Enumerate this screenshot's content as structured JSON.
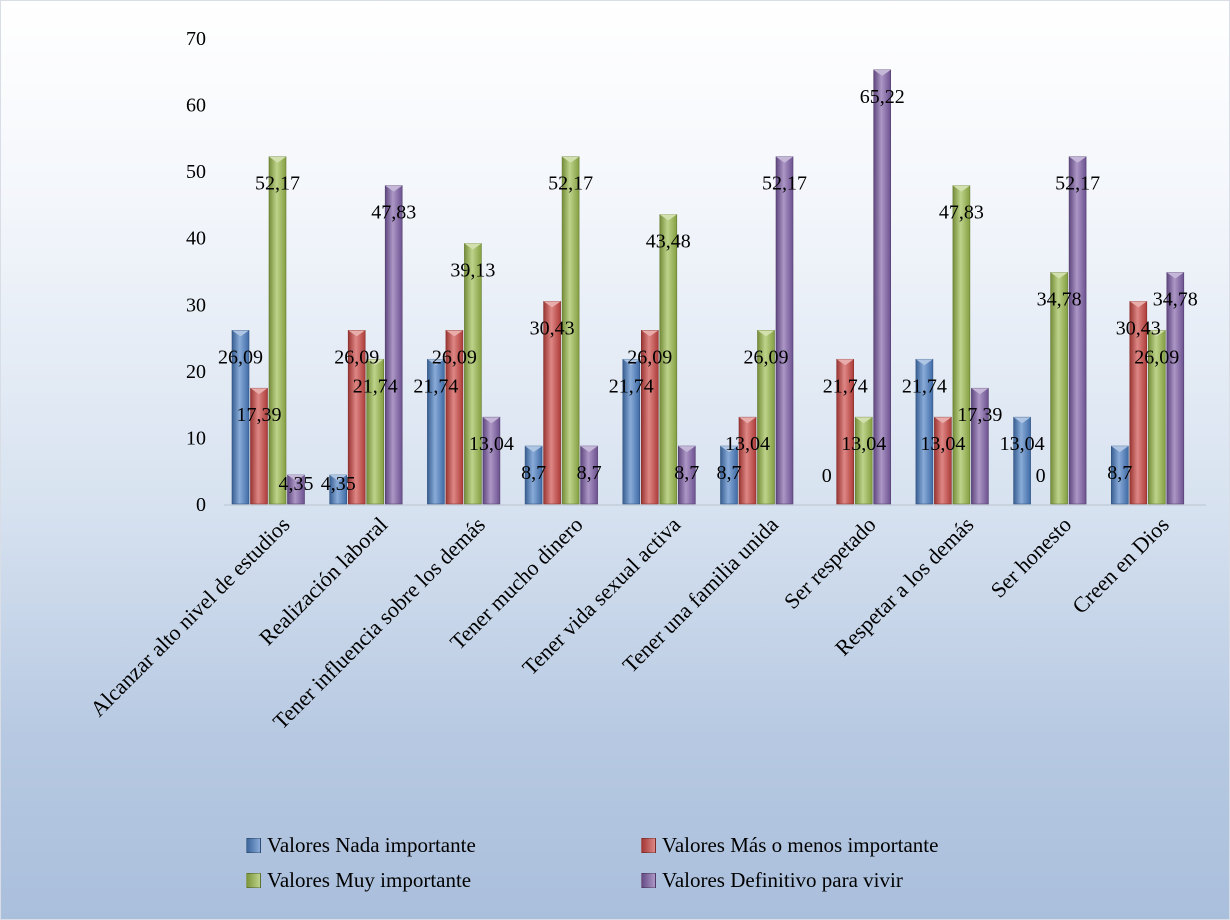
{
  "chart_data": {
    "type": "bar",
    "title": "",
    "xlabel": "",
    "ylabel": "",
    "ylim": [
      0,
      70
    ],
    "yticks": [
      0,
      10,
      20,
      30,
      40,
      50,
      60,
      70
    ],
    "grid": false,
    "legend_position": "bottom",
    "categories": [
      "Alcanzar alto nivel de estudios",
      "Realización laboral",
      "Tener influencia sobre los demás",
      "Tener mucho dinero",
      "Tener vida sexual activa",
      "Tener una familia unida",
      "Ser respetado",
      "Respetar a los demás",
      "Ser honesto",
      "Creen en Dios"
    ],
    "series": [
      {
        "name": "Valores Nada importante",
        "color": "#4a7ec3",
        "values": [
          26.09,
          4.35,
          21.74,
          8.7,
          21.74,
          8.7,
          0,
          21.74,
          13.04,
          8.7
        ],
        "labels": [
          "26,09",
          "4,35",
          "21,74",
          "8,7",
          "21,74",
          "8,7",
          "0",
          "21,74",
          "13,04",
          "8,7"
        ]
      },
      {
        "name": "Valores Más o menos importante",
        "color": "#cc4643",
        "values": [
          17.39,
          26.09,
          26.09,
          30.43,
          26.09,
          13.04,
          21.74,
          13.04,
          0,
          30.43
        ],
        "labels": [
          "17,39",
          "26,09",
          "26,09",
          "30,43",
          "26,09",
          "13,04",
          "21,74",
          "13,04",
          "0",
          "30,43"
        ]
      },
      {
        "name": "Valores Muy importante",
        "color": "#9bbb4c",
        "values": [
          52.17,
          21.74,
          39.13,
          52.17,
          43.48,
          26.09,
          13.04,
          47.83,
          34.78,
          26.09
        ],
        "labels": [
          "52,17",
          "21,74",
          "39,13",
          "52,17",
          "43,48",
          "26,09",
          "13,04",
          "47,83",
          "34,78",
          "26,09"
        ]
      },
      {
        "name": "Valores Definitivo para vivir",
        "color": "#7f5fa8",
        "values": [
          4.35,
          47.83,
          13.04,
          8.7,
          8.7,
          52.17,
          65.22,
          17.39,
          52.17,
          34.78
        ],
        "labels": [
          "4,35",
          "47,83",
          "13,04",
          "8,7",
          "8,7",
          "52,17",
          "65,22",
          "17,39",
          "52,17",
          "34,78"
        ]
      }
    ]
  }
}
